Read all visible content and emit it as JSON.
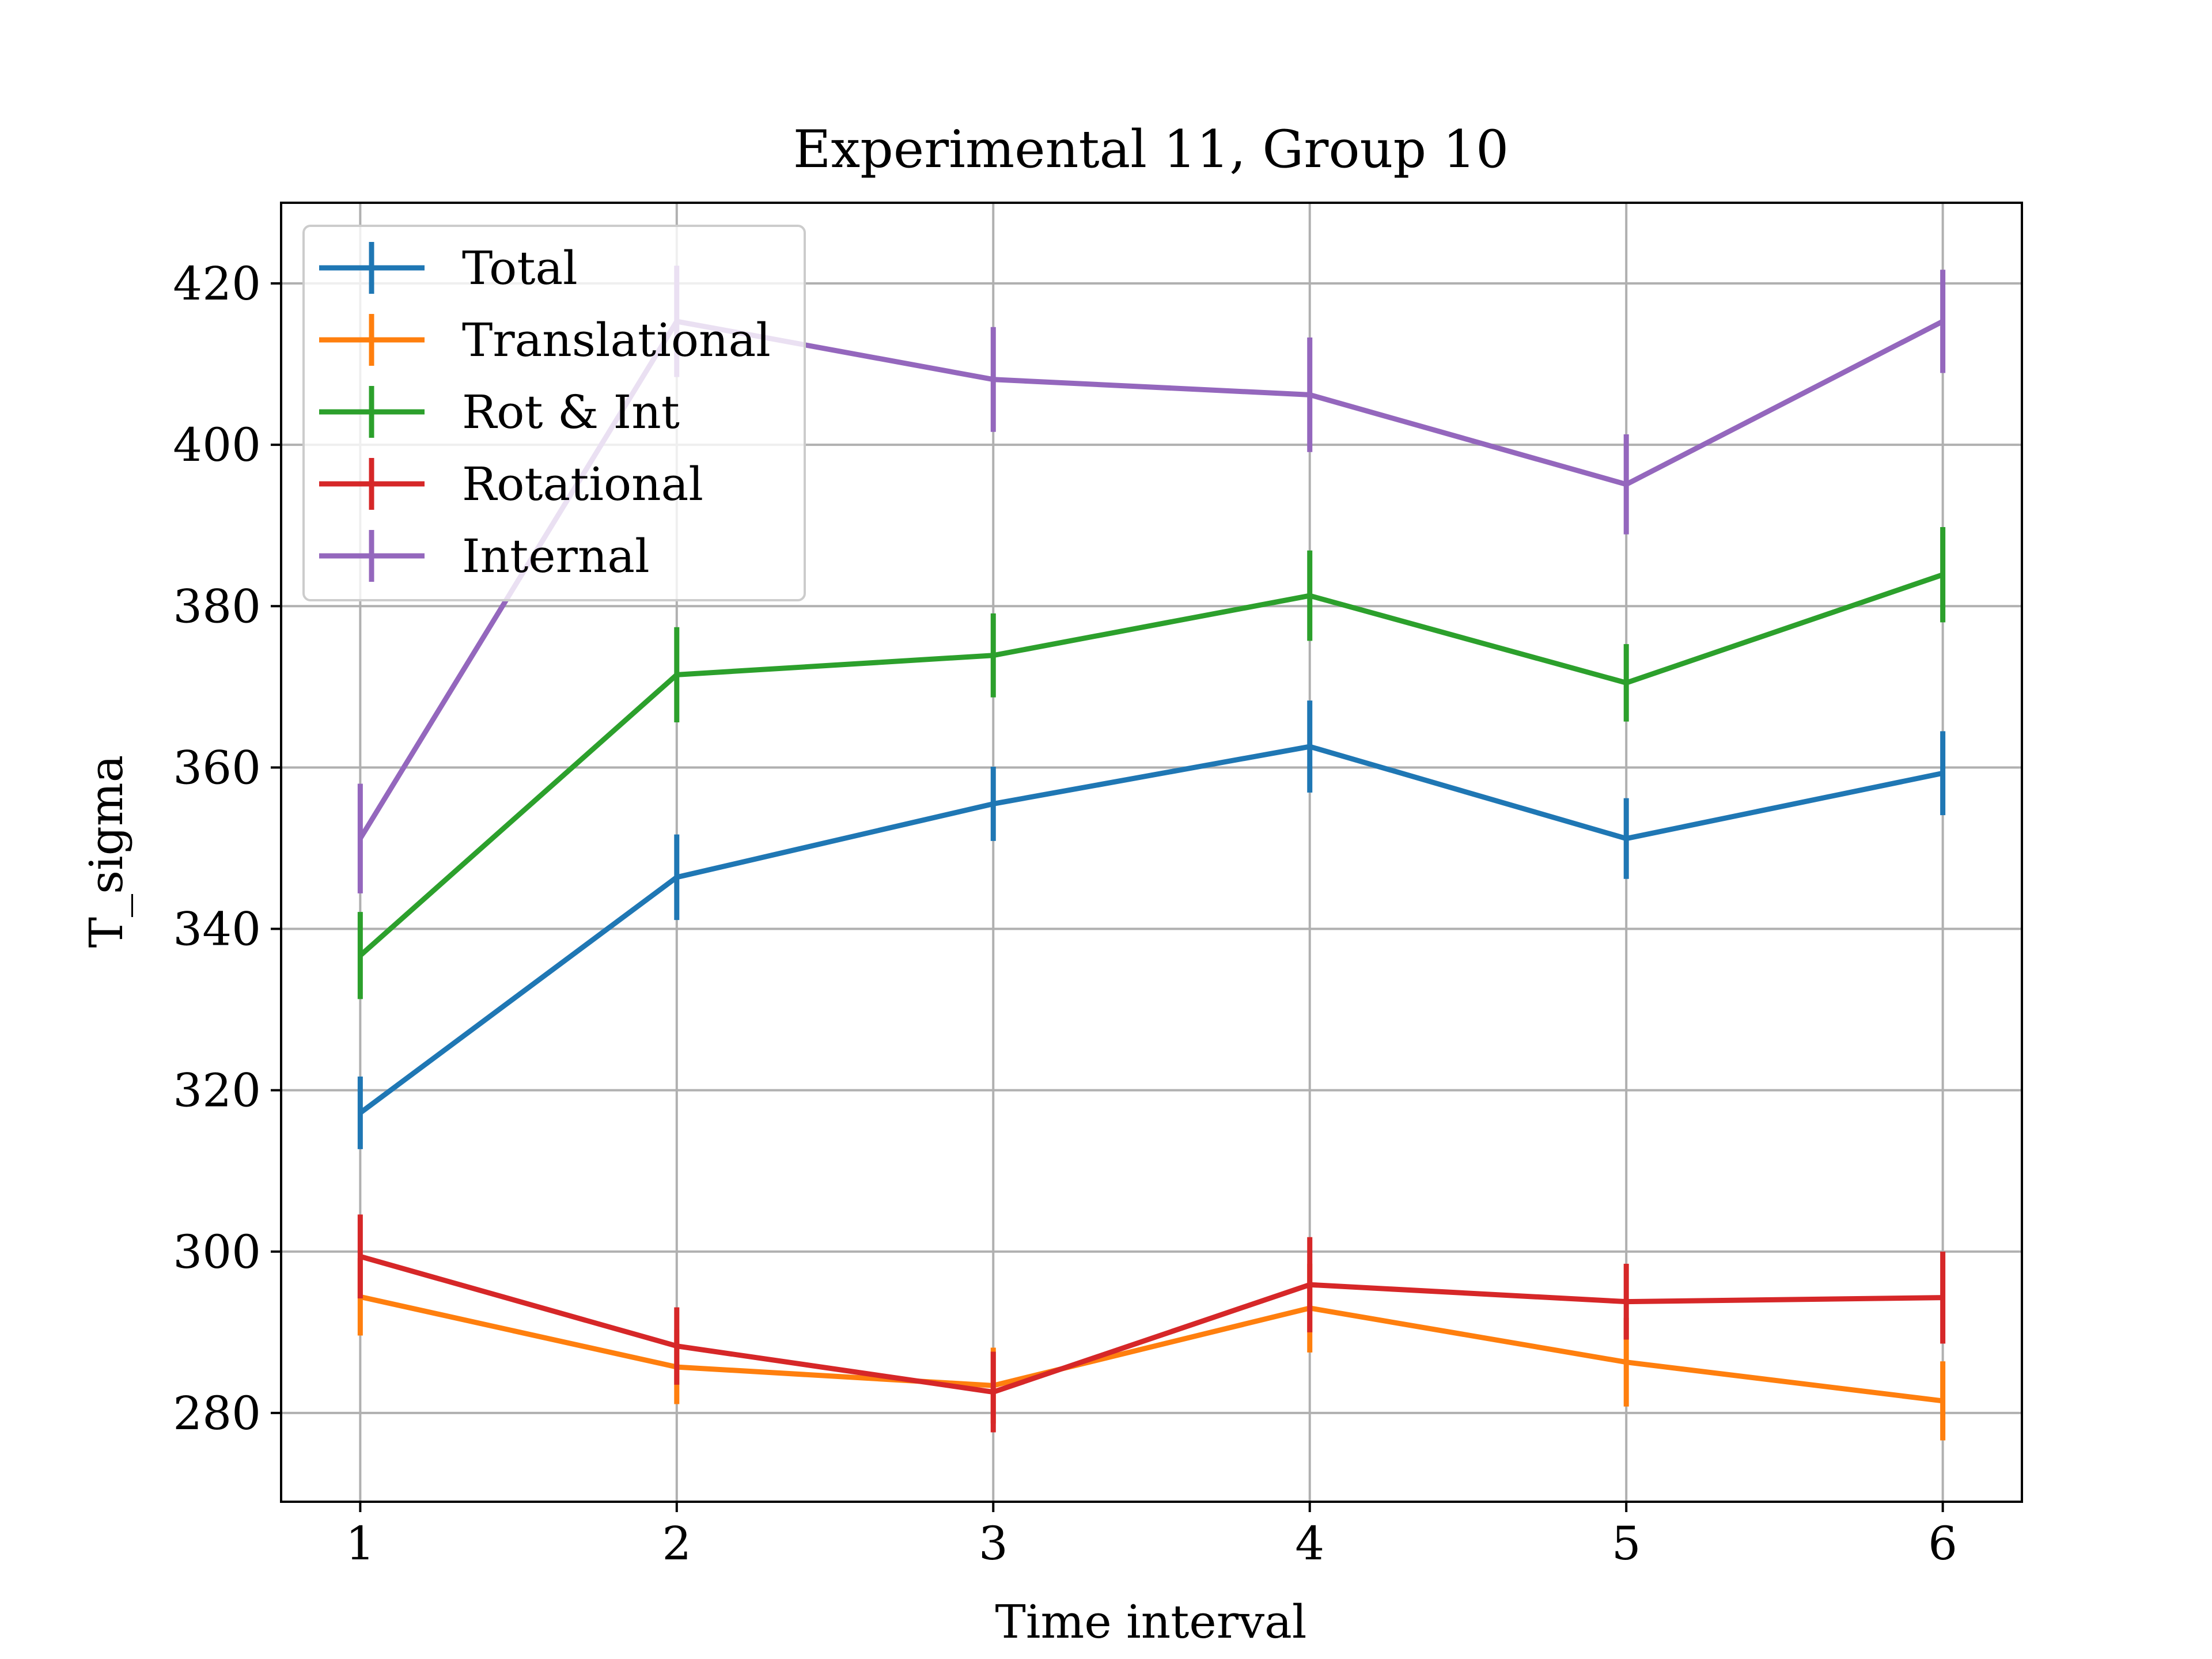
{
  "chart_data": {
    "type": "line",
    "title": "Experimental 11, Group 10",
    "xlabel": "Time interval",
    "ylabel": "T_sigma",
    "x": [
      1,
      2,
      3,
      4,
      5,
      6
    ],
    "xticks": [
      "1",
      "2",
      "3",
      "4",
      "5",
      "6"
    ],
    "yticks": [
      "280",
      "300",
      "320",
      "340",
      "360",
      "380",
      "400",
      "420"
    ],
    "xlim": [
      0.75,
      6.25
    ],
    "ylim": [
      269,
      430
    ],
    "grid": true,
    "legend_position": "top-left",
    "error_bars": true,
    "series": [
      {
        "name": "Total",
        "color": "#1f77b4",
        "values": [
          317.2,
          346.4,
          355.5,
          362.6,
          351.2,
          359.3
        ],
        "errors": [
          4.5,
          5.3,
          4.6,
          5.7,
          5.0,
          5.2
        ]
      },
      {
        "name": "Translational",
        "color": "#ff7f0e",
        "values": [
          294.4,
          285.7,
          283.4,
          293.0,
          286.3,
          281.5
        ],
        "errors": [
          4.8,
          4.6,
          4.7,
          5.5,
          5.5,
          4.9
        ]
      },
      {
        "name": "Rot & Int",
        "color": "#2ca02c",
        "values": [
          336.7,
          371.5,
          373.9,
          381.3,
          370.5,
          383.9
        ],
        "errors": [
          5.4,
          5.9,
          5.2,
          5.6,
          4.8,
          5.9
        ]
      },
      {
        "name": "Rotational",
        "color": "#d62728",
        "values": [
          299.4,
          288.3,
          282.6,
          295.9,
          293.8,
          294.3
        ],
        "errors": [
          5.2,
          4.8,
          5.0,
          5.9,
          4.7,
          5.7
        ]
      },
      {
        "name": "Internal",
        "color": "#9467bd",
        "values": [
          351.2,
          415.3,
          408.1,
          406.2,
          395.1,
          415.3
        ],
        "errors": [
          6.8,
          6.9,
          6.5,
          7.1,
          6.2,
          6.4
        ]
      }
    ]
  }
}
